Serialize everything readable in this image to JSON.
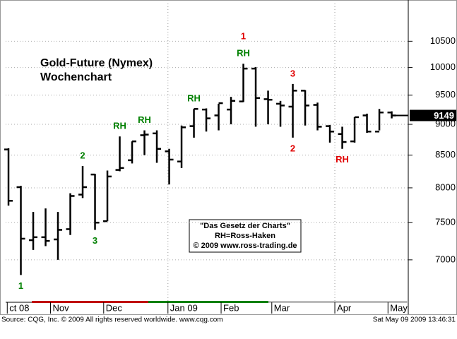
{
  "chart_data": {
    "type": "ohlc",
    "title": "Gold-Future (Nymex)",
    "subtitle": "Wochenchart",
    "box_lines": [
      "\"Das Gesetz der Charts\"",
      "RH=Ross-Haken",
      "© 2009 www.ross-trading.de"
    ],
    "source": "Source: CQG, Inc. © 2009 All rights reserved worldwide. www.cqg.com",
    "timestamp": "Sat May 09 2009 13:46:31",
    "log_scale": true,
    "grid": true,
    "color": "#000000",
    "ylim": [
      6470,
      11260
    ],
    "yticks": [
      7000,
      7500,
      8000,
      8500,
      9000,
      9500,
      10000,
      10500
    ],
    "xlim": [
      -0.23,
      32.34
    ],
    "xticks": [
      {
        "value": -0.1,
        "label": "ct 08"
      },
      {
        "value": 3.4,
        "label": "Nov"
      },
      {
        "value": 7.7,
        "label": "Dec"
      },
      {
        "value": 12.9,
        "label": "Jan 09",
        "divider": true
      },
      {
        "value": 17.2,
        "label": "Feb"
      },
      {
        "value": 21.3,
        "label": "Mar"
      },
      {
        "value": 26.4,
        "label": "Apr",
        "divider": true
      },
      {
        "value": 30.7,
        "label": "May"
      }
    ],
    "open": [
      8590,
      8010,
      7260,
      7300,
      7270,
      7410,
      7900,
      8200,
      7520,
      8270,
      8420,
      8820,
      8850,
      8560,
      8400,
      8970,
      9250,
      9150,
      9250,
      9390,
      9980,
      9430,
      9350,
      9300,
      9580,
      9330,
      8970,
      8840,
      8720,
      9150,
      8880,
      9200
    ],
    "high": [
      8610,
      8030,
      7650,
      7700,
      7650,
      7920,
      8330,
      8210,
      8260,
      8800,
      8720,
      8900,
      8900,
      8600,
      8980,
      9260,
      9270,
      9350,
      9470,
      10070,
      10010,
      9580,
      9400,
      9700,
      9590,
      9370,
      8990,
      8960,
      9120,
      9180,
      9260,
      9220
    ],
    "low": [
      7740,
      6806,
      7130,
      7180,
      7000,
      7330,
      7850,
      7400,
      7520,
      8250,
      8370,
      8500,
      8380,
      8050,
      8300,
      8780,
      8880,
      8900,
      9000,
      9380,
      8960,
      9000,
      8960,
      8780,
      8980,
      8900,
      8700,
      8600,
      8700,
      8860,
      8900,
      9100
    ],
    "close": [
      7810,
      7280,
      7300,
      7250,
      7400,
      7880,
      8010,
      7500,
      8170,
      8300,
      8720,
      8830,
      8600,
      8430,
      8950,
      9260,
      9100,
      9360,
      9400,
      9980,
      9450,
      9420,
      9320,
      9580,
      9320,
      8960,
      8880,
      8710,
      9120,
      8880,
      9200,
      9149
    ],
    "last_value": 9149,
    "annotations": [
      {
        "bar": 1,
        "text": "1",
        "color": "#008000",
        "side": "below"
      },
      {
        "bar": 6,
        "text": "2",
        "color": "#008000",
        "side": "above"
      },
      {
        "bar": 7,
        "text": "3",
        "color": "#008000",
        "side": "below"
      },
      {
        "bar": 9,
        "text": "RH",
        "color": "#008000",
        "side": "above"
      },
      {
        "bar": 11,
        "text": "RH",
        "color": "#008000",
        "side": "above"
      },
      {
        "bar": 15,
        "text": "RH",
        "color": "#008000",
        "side": "above"
      },
      {
        "bar": 19,
        "text": "RH",
        "color": "#008000",
        "side": "above"
      },
      {
        "bar": 19,
        "text": "1",
        "color": "#e00000",
        "side": "top2"
      },
      {
        "bar": 23,
        "text": "3",
        "color": "#e00000",
        "side": "above"
      },
      {
        "bar": 23,
        "text": "2",
        "color": "#e00000",
        "side": "below"
      },
      {
        "bar": 27,
        "text": "RH",
        "color": "#e00000",
        "side": "below"
      }
    ]
  }
}
